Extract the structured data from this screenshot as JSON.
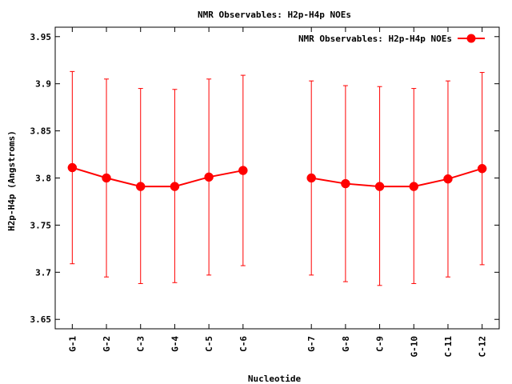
{
  "chart_data": {
    "type": "line",
    "title": "NMR Observables: H2p-H4p NOEs",
    "xlabel": "Nucleotide",
    "ylabel": "H2p-H4p (Angstroms)",
    "ylim": [
      3.64,
      3.96
    ],
    "yticks": [
      "3.65",
      "3.7",
      "3.75",
      "3.8",
      "3.85",
      "3.9",
      "3.95"
    ],
    "grid": false,
    "legend_position": "top-right",
    "series": [
      {
        "name": "NMR Observables: H2p-H4p NOEs",
        "color": "#ff0000",
        "segments": [
          {
            "categories": [
              "G-1",
              "G-2",
              "C-3",
              "G-4",
              "C-5",
              "C-6"
            ],
            "positions": [
              1,
              2,
              3,
              4,
              5,
              6
            ],
            "values": [
              3.811,
              3.8,
              3.791,
              3.791,
              3.801,
              3.808
            ],
            "err_low": [
              3.709,
              3.695,
              3.688,
              3.689,
              3.697,
              3.707
            ],
            "err_high": [
              3.913,
              3.905,
              3.895,
              3.894,
              3.905,
              3.909
            ]
          },
          {
            "categories": [
              "G-7",
              "G-8",
              "C-9",
              "G-10",
              "C-11",
              "C-12"
            ],
            "positions": [
              8,
              9,
              10,
              11,
              12,
              13
            ],
            "values": [
              3.8,
              3.794,
              3.791,
              3.791,
              3.799,
              3.81
            ],
            "err_low": [
              3.697,
              3.69,
              3.686,
              3.688,
              3.695,
              3.708
            ],
            "err_high": [
              3.903,
              3.898,
              3.897,
              3.895,
              3.903,
              3.912
            ]
          }
        ]
      }
    ]
  }
}
